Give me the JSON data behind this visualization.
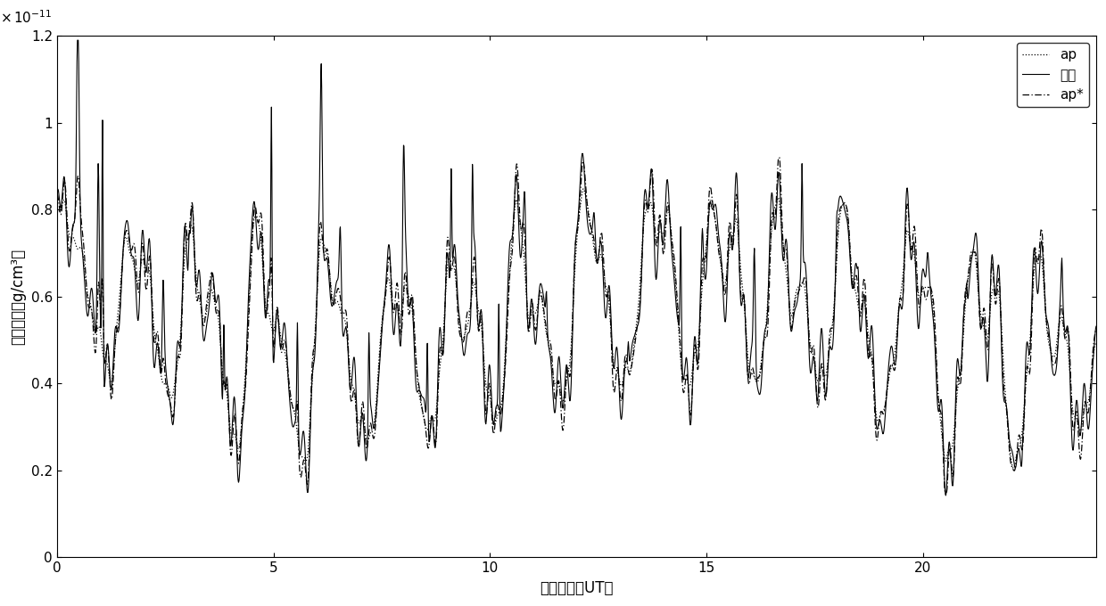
{
  "xlabel": "时间（小时UT）",
  "ylabel": "大气密度（g/cm³）",
  "xlim": [
    0,
    24
  ],
  "ylim": [
    0,
    1.2e-11
  ],
  "xticks": [
    0,
    5,
    10,
    15,
    20
  ],
  "ytick_labels": [
    "0",
    "0.2",
    "0.4",
    "0.6",
    "0.8",
    "1",
    "1.2"
  ],
  "ytick_vals": [
    0,
    2e-12,
    4e-12,
    6e-12,
    8e-12,
    1e-11,
    1.2e-11
  ],
  "legend_labels": [
    "ap",
    "实测",
    "ap*"
  ],
  "background_color": "#ffffff",
  "seed": 7
}
